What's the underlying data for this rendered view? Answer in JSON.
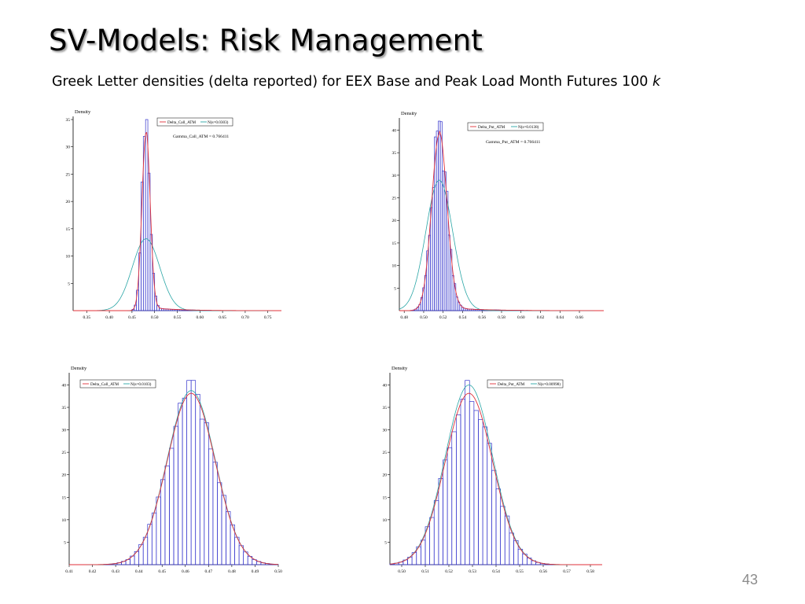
{
  "slide": {
    "title": "SV-Models: Risk Management",
    "subtitle_main": "Greek Letter densities (delta reported) for EEX Base and Peak Load Month Futures 100",
    "subtitle_var": "k",
    "page_number": "43"
  },
  "chart_data": [
    {
      "type": "bar",
      "ylabel": "Density",
      "xlim": [
        0.32,
        0.78
      ],
      "ylim": [
        0,
        35
      ],
      "xticks": [
        0.35,
        0.4,
        0.45,
        0.5,
        0.55,
        0.6,
        0.65,
        0.7,
        0.75
      ],
      "yticks": [
        5,
        10,
        15,
        20,
        25,
        30,
        35
      ],
      "annotation": "Gamma_Call_ATM = 0.766411",
      "series": [
        {
          "name": "Delta_Call_ATM",
          "kind": "histogram+kde",
          "mean": 0.481,
          "peak": 35,
          "tail": "right-skewed, long tail to 0.75"
        },
        {
          "name": "N(s=0.0303)",
          "kind": "normal",
          "mean": 0.481,
          "sd": 0.0303
        }
      ]
    },
    {
      "type": "bar",
      "ylabel": "Density",
      "xlim": [
        0.475,
        0.685
      ],
      "ylim": [
        0,
        42
      ],
      "xticks": [
        0.48,
        0.5,
        0.52,
        0.54,
        0.56,
        0.58,
        0.6,
        0.62,
        0.64,
        0.66
      ],
      "yticks": [
        5,
        10,
        15,
        20,
        25,
        30,
        35,
        40
      ],
      "annotation": "Gamma_Put_ATM = 0.766411",
      "series": [
        {
          "name": "Delta_Put_ATM",
          "kind": "histogram+kde",
          "mean": 0.516,
          "peak": 42,
          "tail": "right-skewed, long tail to 0.66"
        },
        {
          "name": "N(s=0.0138)",
          "kind": "normal",
          "mean": 0.516,
          "sd": 0.0138
        }
      ]
    },
    {
      "type": "bar",
      "ylabel": "Density",
      "xlim": [
        0.41,
        0.5
      ],
      "ylim": [
        0,
        42
      ],
      "xticks": [
        0.41,
        0.42,
        0.43,
        0.44,
        0.45,
        0.46,
        0.47,
        0.48,
        0.49,
        0.5
      ],
      "yticks": [
        5,
        10,
        15,
        20,
        25,
        30,
        35,
        40
      ],
      "annotation": "",
      "series": [
        {
          "name": "Delta_Call_ATM",
          "kind": "histogram+kde",
          "mean": 0.4625,
          "peak": 41
        },
        {
          "name": "N(s=0.0103)",
          "kind": "normal",
          "mean": 0.4625,
          "sd": 0.0103
        }
      ]
    },
    {
      "type": "bar",
      "ylabel": "Density",
      "xlim": [
        0.495,
        0.585
      ],
      "ylim": [
        0,
        42
      ],
      "xticks": [
        0.5,
        0.51,
        0.52,
        0.53,
        0.54,
        0.55,
        0.56,
        0.57,
        0.58
      ],
      "yticks": [
        5,
        10,
        15,
        20,
        25,
        30,
        35,
        40
      ],
      "annotation": "",
      "series": [
        {
          "name": "Delta_Put_ATM",
          "kind": "histogram+kde",
          "mean": 0.5285,
          "peak": 41
        },
        {
          "name": "N(s=0.00998)",
          "kind": "normal",
          "mean": 0.5285,
          "sd": 0.00998
        }
      ]
    }
  ],
  "colors": {
    "histogram": "#3333cc",
    "kde": "#e0303a",
    "normal": "#2aa6a6",
    "axis": "#000000"
  }
}
